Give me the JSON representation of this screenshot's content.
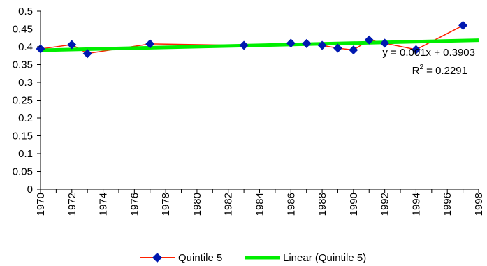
{
  "chart_data": {
    "type": "line",
    "title": "",
    "xlabel": "",
    "ylabel": "",
    "xlim": [
      1970,
      1998
    ],
    "ylim": [
      0,
      0.5
    ],
    "x_ticks": [
      1970,
      1972,
      1974,
      1976,
      1978,
      1980,
      1982,
      1984,
      1986,
      1988,
      1990,
      1992,
      1994,
      1996,
      1998
    ],
    "y_ticks": [
      0,
      0.05,
      0.1,
      0.15,
      0.2,
      0.25,
      0.3,
      0.35,
      0.4,
      0.45,
      0.5
    ],
    "y_tick_labels": [
      "0",
      "0.05",
      "0.1",
      "0.15",
      "0.2",
      "0.25",
      "0.3",
      "0.35",
      "0.4",
      "0.45",
      "0.5"
    ],
    "grid": false,
    "legend_position": "bottom",
    "series": [
      {
        "name": "Quintile 5",
        "color": "#ff2000",
        "marker_color": "#0018b0",
        "marker": "diamond",
        "points": [
          {
            "x": 1970,
            "y": 0.394
          },
          {
            "x": 1972,
            "y": 0.406
          },
          {
            "x": 1973,
            "y": 0.381
          },
          {
            "x": 1977,
            "y": 0.408
          },
          {
            "x": 1983,
            "y": 0.404
          },
          {
            "x": 1986,
            "y": 0.41
          },
          {
            "x": 1987,
            "y": 0.409
          },
          {
            "x": 1988,
            "y": 0.404
          },
          {
            "x": 1989,
            "y": 0.396
          },
          {
            "x": 1990,
            "y": 0.391
          },
          {
            "x": 1991,
            "y": 0.419
          },
          {
            "x": 1992,
            "y": 0.41
          },
          {
            "x": 1994,
            "y": 0.392
          },
          {
            "x": 1997,
            "y": 0.46
          }
        ]
      }
    ],
    "trendline": {
      "name": "Linear (Quintile 5)",
      "color": "#00ee00",
      "type": "linear",
      "slope": 0.001,
      "intercept": 0.3903,
      "x_start": 1970,
      "x_end": 1998,
      "equation_label": "y = 0.001x + 0.3903",
      "r2_prefix": "R",
      "r2_exponent": "2",
      "r2_value": " = 0.2291"
    }
  }
}
